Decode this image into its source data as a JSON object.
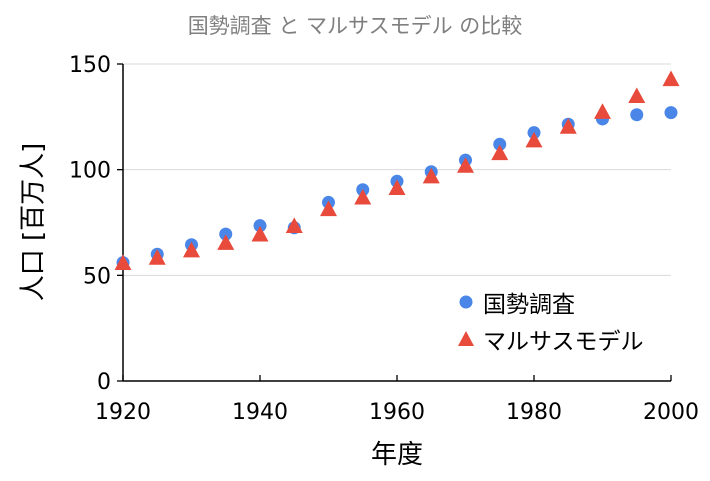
{
  "chart_data": {
    "type": "scatter",
    "title": "国勢調査 と マルサスモデル の比較",
    "xlabel": "年度",
    "ylabel": "人口 [百万人]",
    "xlim": [
      1920,
      2000
    ],
    "ylim": [
      0,
      150
    ],
    "xticks": [
      "1920",
      "1940",
      "1960",
      "1980",
      "2000"
    ],
    "yticks": [
      "0",
      "50",
      "100",
      "150"
    ],
    "grid": "horizontal",
    "legend_position": "bottom-right",
    "series": [
      {
        "name": "国勢調査",
        "marker": "circle",
        "color": "#4a86e8",
        "x": [
          1920,
          1925,
          1930,
          1935,
          1940,
          1945,
          1950,
          1955,
          1960,
          1965,
          1970,
          1975,
          1980,
          1985,
          1990,
          1995,
          2000
        ],
        "y": [
          56,
          60,
          64.5,
          69.5,
          73.5,
          72.5,
          84.5,
          90.5,
          94.5,
          99,
          104.5,
          112,
          117.5,
          121.5,
          124,
          126,
          127
        ]
      },
      {
        "name": "マルサスモデル",
        "marker": "triangle",
        "color": "#e84a3c",
        "x": [
          1920,
          1925,
          1930,
          1935,
          1940,
          1945,
          1950,
          1955,
          1960,
          1965,
          1970,
          1975,
          1980,
          1985,
          1990,
          1995,
          2000
        ],
        "y": [
          55.5,
          58,
          61.5,
          65,
          69,
          73,
          81,
          86.5,
          91,
          96.5,
          101.5,
          107.5,
          113.5,
          120,
          127,
          134.5,
          142.5
        ]
      }
    ]
  }
}
